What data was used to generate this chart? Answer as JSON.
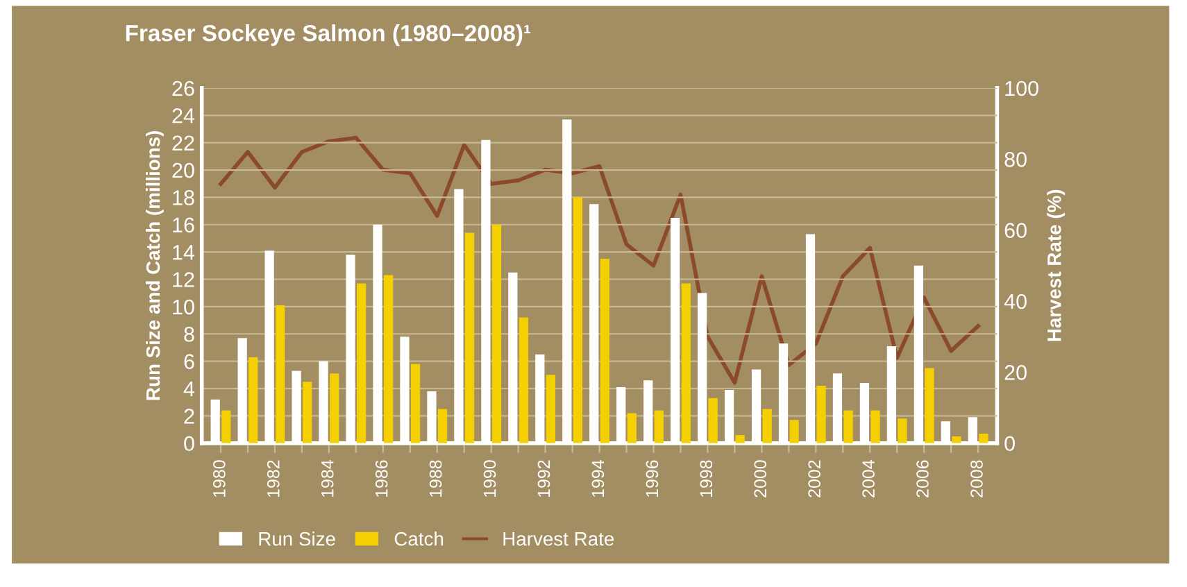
{
  "chart_data": {
    "type": "bar",
    "title": "Fraser Sockeye Salmon (1980–2008)¹",
    "ylabel": "Run Size and Catch (millions)",
    "y2label": "Harvest Rate (%)",
    "categories": [
      "1980",
      null,
      "1982",
      null,
      "1984",
      null,
      "1986",
      null,
      "1988",
      null,
      "1990",
      null,
      "1992",
      null,
      "1994",
      null,
      "1996",
      null,
      "1998",
      null,
      "2000",
      null,
      "2002",
      null,
      "2004",
      null,
      "2006",
      null,
      "2008"
    ],
    "series": [
      {
        "name": "Run Size",
        "color": "#ffffff",
        "values": [
          3.2,
          7.7,
          14.1,
          5.3,
          6.0,
          13.8,
          16.0,
          7.8,
          3.8,
          18.6,
          22.2,
          12.5,
          6.5,
          23.7,
          17.5,
          4.1,
          4.6,
          16.5,
          11.0,
          3.9,
          5.4,
          7.3,
          15.3,
          5.1,
          4.4,
          7.1,
          13.0,
          1.6,
          1.9
        ]
      },
      {
        "name": "Catch",
        "color": "#f5d000",
        "values": [
          2.4,
          6.3,
          10.1,
          4.5,
          5.1,
          11.7,
          12.3,
          5.8,
          2.5,
          15.4,
          16.0,
          9.2,
          5.0,
          18.0,
          13.5,
          2.2,
          2.4,
          11.7,
          3.3,
          0.6,
          2.5,
          1.7,
          4.2,
          2.4,
          2.4,
          1.8,
          5.5,
          0.5,
          0.7
        ]
      },
      {
        "name": "Harvest Rate",
        "type": "line",
        "axis": "y2",
        "color": "#8b4a2b",
        "values": [
          73,
          82,
          72,
          82,
          85,
          86,
          77,
          76,
          64,
          84,
          73,
          74,
          77,
          76,
          78,
          56,
          50,
          70,
          30,
          17,
          47,
          22,
          28,
          47,
          55,
          24,
          41,
          26,
          33
        ]
      }
    ],
    "ylim": [
      0,
      26
    ],
    "yticks": [
      0,
      2,
      4,
      6,
      8,
      10,
      12,
      14,
      16,
      18,
      20,
      22,
      24,
      26
    ],
    "y2lim": [
      0,
      100
    ],
    "y2ticks": [
      0,
      20,
      40,
      60,
      80,
      100
    ],
    "grid": "y",
    "legend": "bottom left"
  }
}
